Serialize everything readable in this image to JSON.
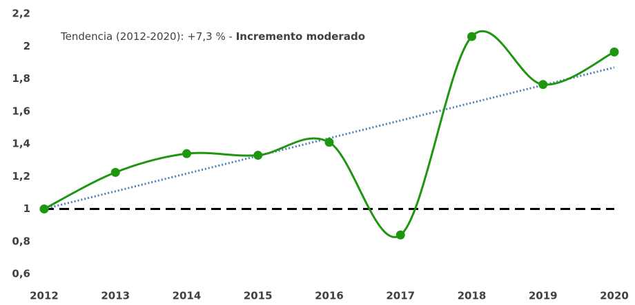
{
  "chart_data": {
    "type": "line",
    "categories": [
      "2012",
      "2013",
      "2014",
      "2015",
      "2016",
      "2017",
      "2018",
      "2019",
      "2020"
    ],
    "series": [
      {
        "color": "#1e9610",
        "values": [
          1.0,
          1.225,
          1.34,
          1.33,
          1.41,
          0.84,
          2.06,
          1.765,
          1.965
        ]
      }
    ],
    "smooth": true,
    "trend_line": {
      "color": "#4a7ebb",
      "values": [
        1.0,
        1.87
      ]
    },
    "reference_line": {
      "value": 1,
      "color": "#000000"
    },
    "annotation": {
      "text": "Tendencia (2012-2020): +7,3 % -",
      "emphasis": "Incremento moderado"
    },
    "ylim": [
      0.6,
      2.2
    ],
    "yticks": [
      {
        "value": 0.6,
        "label": "0,6"
      },
      {
        "value": 0.8,
        "label": "0,8"
      },
      1,
      {
        "value": 1.2,
        "label": "1,2"
      },
      {
        "value": 1.4,
        "label": "1,4"
      },
      {
        "value": 1.6,
        "label": "1,6"
      },
      {
        "value": 1.8,
        "label": "1,8"
      },
      2,
      {
        "value": 2.2,
        "label": "2,2"
      }
    ]
  }
}
